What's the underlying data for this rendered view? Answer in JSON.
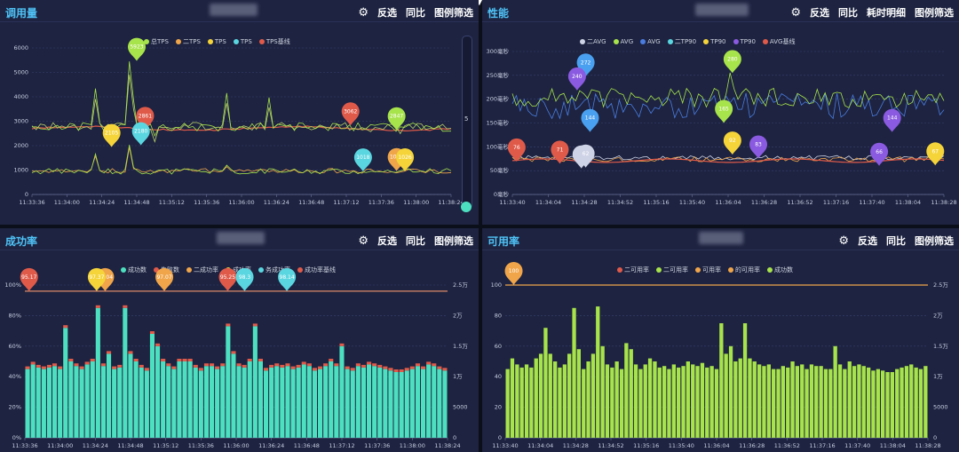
{
  "panels": [
    {
      "title": "调用量",
      "tools": [
        "反选",
        "同比",
        "图例筛选"
      ],
      "gear_icon": "gear-icon"
    },
    {
      "title": "性能",
      "tools": [
        "反选",
        "同比",
        "耗时明细",
        "图例筛选"
      ],
      "gear_icon": "gear-icon"
    },
    {
      "title": "成功率",
      "tools": [
        "反选",
        "同比",
        "图例筛选"
      ],
      "gear_icon": "gear-icon"
    },
    {
      "title": "可用率",
      "tools": [
        "反选",
        "同比",
        "图例筛选"
      ],
      "gear_icon": "gear-icon"
    }
  ],
  "top_center_marker": "▼",
  "slider_value": "5",
  "chart_data": [
    {
      "type": "line",
      "panel": "调用量",
      "legend": [
        {
          "name": "总TPS",
          "color": "#a7e34b"
        },
        {
          "name": "二TPS",
          "color": "#f0a54a"
        },
        {
          "name": "TPS",
          "color": "#f5d43a"
        },
        {
          "name": "TPS",
          "color": "#5ad6e0"
        },
        {
          "name": "TPS基线",
          "color": "#e05a4a"
        }
      ],
      "x_ticks": [
        "11:33:36",
        "11:34:00",
        "11:34:24",
        "11:34:48",
        "11:35:12",
        "11:35:36",
        "11:36:00",
        "11:36:24",
        "11:36:48",
        "11:37:12",
        "11:37:36",
        "11:38:00",
        "11:38:24"
      ],
      "y_ticks": [
        "0",
        "1000",
        "2000",
        "3000",
        "4000",
        "5000",
        "6000"
      ],
      "ylim": [
        0,
        6500
      ],
      "pins": [
        {
          "label": "5923",
          "x": 0.25,
          "y": 5923,
          "color": "#a7e34b"
        },
        {
          "label": "2861",
          "x": 0.27,
          "y": 2861,
          "color": "#e05a4a"
        },
        {
          "label": "3062",
          "x": 0.76,
          "y": 3062,
          "color": "#e05a4a"
        },
        {
          "label": "2847",
          "x": 0.87,
          "y": 2847,
          "color": "#a7e34b"
        },
        {
          "label": "2105",
          "x": 0.19,
          "y": 2105,
          "color": "#f5d43a"
        },
        {
          "label": "2180",
          "x": 0.26,
          "y": 2180,
          "color": "#5ad6e0"
        },
        {
          "label": "1018",
          "x": 0.79,
          "y": 1018,
          "color": "#5ad6e0"
        },
        {
          "label": "1036",
          "x": 0.87,
          "y": 1036,
          "color": "#f0a54a"
        },
        {
          "label": "1026",
          "x": 0.89,
          "y": 1026,
          "color": "#f5d43a"
        }
      ]
    },
    {
      "type": "line",
      "panel": "性能",
      "legend": [
        {
          "name": "二AVG",
          "color": "#cfd3e6"
        },
        {
          "name": "AVG",
          "color": "#a7e34b"
        },
        {
          "name": "AVG",
          "color": "#4a7ce0"
        },
        {
          "name": "二TP90",
          "color": "#5ad6e0"
        },
        {
          "name": "TP90",
          "color": "#f5d43a"
        },
        {
          "name": "TP90",
          "color": "#8a5ae0"
        },
        {
          "name": "AVG基线",
          "color": "#e05a4a"
        }
      ],
      "x_ticks": [
        "11:33:40",
        "11:34:04",
        "11:34:28",
        "11:34:52",
        "11:35:16",
        "11:35:40",
        "11:36:04",
        "11:36:28",
        "11:36:52",
        "11:37:16",
        "11:37:40",
        "11:38:04",
        "11:38:28"
      ],
      "y_ticks": [
        "0毫秒",
        "50毫秒",
        "100毫秒",
        "150毫秒",
        "200毫秒",
        "250毫秒",
        "300毫秒"
      ],
      "ylim": [
        0,
        330
      ],
      "pins": [
        {
          "label": "272",
          "x": 0.17,
          "y": 272,
          "color": "#4aa0f0"
        },
        {
          "label": "240",
          "x": 0.15,
          "y": 240,
          "color": "#8a5ae0"
        },
        {
          "label": "280",
          "x": 0.51,
          "y": 280,
          "color": "#a7e34b"
        },
        {
          "label": "144",
          "x": 0.18,
          "y": 144,
          "color": "#4aa0f0"
        },
        {
          "label": "144",
          "x": 0.88,
          "y": 144,
          "color": "#8a5ae0"
        },
        {
          "label": "165",
          "x": 0.49,
          "y": 165,
          "color": "#a7e34b"
        },
        {
          "label": "76",
          "x": 0.01,
          "y": 76,
          "color": "#e05a4a"
        },
        {
          "label": "71",
          "x": 0.11,
          "y": 71,
          "color": "#e05a4a"
        },
        {
          "label": "60",
          "x": 0.16,
          "y": 60,
          "color": "#cfd3e6"
        },
        {
          "label": "62",
          "x": 0.17,
          "y": 62,
          "color": "#cfd3e6"
        },
        {
          "label": "92",
          "x": 0.51,
          "y": 92,
          "color": "#f5d43a"
        },
        {
          "label": "83",
          "x": 0.57,
          "y": 83,
          "color": "#8a5ae0"
        },
        {
          "label": "66",
          "x": 0.85,
          "y": 66,
          "color": "#8a5ae0"
        },
        {
          "label": "67",
          "x": 0.98,
          "y": 67,
          "color": "#f5d43a"
        }
      ]
    },
    {
      "type": "bar",
      "panel": "成功率",
      "legend": [
        {
          "name": "成功数",
          "color": "#4de0c0"
        },
        {
          "name": "失败数",
          "color": "#e05a4a"
        },
        {
          "name": "二成功率",
          "color": "#f0a54a"
        },
        {
          "name": "成功率",
          "color": "#f5d43a"
        },
        {
          "name": "务成功率",
          "color": "#5ad6e0"
        },
        {
          "name": "成功率基线",
          "color": "#e05a4a"
        }
      ],
      "x_ticks": [
        "11:33:36",
        "11:34:00",
        "11:34:24",
        "11:34:48",
        "11:35:12",
        "11:35:36",
        "11:36:00",
        "11:36:24",
        "11:36:48",
        "11:37:12",
        "11:37:36",
        "11:38:00",
        "11:38:24"
      ],
      "y_ticks_left": [
        "0%",
        "20%",
        "40%",
        "60%",
        "80%",
        "100%"
      ],
      "y_ticks_right": [
        "0",
        "5000",
        "1万",
        "1.5万",
        "2万",
        "2.5万"
      ],
      "bars": [
        0.45,
        0.48,
        0.46,
        0.45,
        0.46,
        0.47,
        0.45,
        0.72,
        0.5,
        0.47,
        0.45,
        0.48,
        0.5,
        0.85,
        0.47,
        0.55,
        0.45,
        0.46,
        0.85,
        0.55,
        0.5,
        0.46,
        0.44,
        0.68,
        0.6,
        0.5,
        0.47,
        0.45,
        0.5,
        0.5,
        0.5,
        0.46,
        0.44,
        0.47,
        0.47,
        0.45,
        0.47,
        0.73,
        0.55,
        0.47,
        0.46,
        0.5,
        0.73,
        0.5,
        0.44,
        0.46,
        0.47,
        0.46,
        0.47,
        0.45,
        0.46,
        0.48,
        0.47,
        0.44,
        0.45,
        0.47,
        0.5,
        0.47,
        0.6,
        0.45,
        0.44,
        0.47,
        0.46,
        0.48,
        0.47,
        0.46,
        0.45,
        0.44,
        0.43,
        0.43,
        0.44,
        0.45,
        0.47,
        0.45,
        0.48,
        0.47,
        0.45,
        0.44
      ],
      "pins": [
        {
          "label": "95.17",
          "x": 0.01,
          "color": "#e05a4a"
        },
        {
          "label": "98.04",
          "x": 0.19,
          "color": "#f0a54a"
        },
        {
          "label": "97.37",
          "x": 0.17,
          "color": "#f5d43a"
        },
        {
          "label": "97.07",
          "x": 0.33,
          "color": "#f0a54a"
        },
        {
          "label": "95.25",
          "x": 0.48,
          "color": "#e05a4a"
        },
        {
          "label": "98.3",
          "x": 0.52,
          "color": "#5ad6e0"
        },
        {
          "label": "98.14",
          "x": 0.62,
          "color": "#5ad6e0"
        }
      ]
    },
    {
      "type": "bar",
      "panel": "可用率",
      "legend": [
        {
          "name": "二可用率",
          "color": "#e05a4a"
        },
        {
          "name": "二可用率",
          "color": "#a7e34b"
        },
        {
          "name": "可用率",
          "color": "#f0a54a"
        },
        {
          "name": "的可用率",
          "color": "#f0a54a"
        },
        {
          "name": "成功数",
          "color": "#a7e34b"
        }
      ],
      "x_ticks": [
        "11:33:40",
        "11:34:04",
        "11:34:28",
        "11:34:52",
        "11:35:16",
        "11:35:40",
        "11:36:04",
        "11:36:28",
        "11:36:52",
        "11:37:16",
        "11:37:40",
        "11:38:04",
        "11:38:28"
      ],
      "y_ticks_left": [
        "0",
        "20",
        "40",
        "60",
        "80",
        "100"
      ],
      "y_ticks_right": [
        "0",
        "5000",
        "1万",
        "1.5万",
        "2万",
        "2.5万"
      ],
      "bars": [
        0.45,
        0.52,
        0.48,
        0.46,
        0.48,
        0.46,
        0.52,
        0.55,
        0.72,
        0.55,
        0.5,
        0.46,
        0.48,
        0.55,
        0.85,
        0.58,
        0.45,
        0.5,
        0.55,
        0.86,
        0.6,
        0.48,
        0.46,
        0.5,
        0.45,
        0.62,
        0.58,
        0.48,
        0.45,
        0.48,
        0.52,
        0.5,
        0.46,
        0.47,
        0.45,
        0.48,
        0.46,
        0.47,
        0.5,
        0.48,
        0.47,
        0.49,
        0.46,
        0.47,
        0.45,
        0.75,
        0.55,
        0.6,
        0.5,
        0.52,
        0.75,
        0.52,
        0.5,
        0.48,
        0.47,
        0.48,
        0.45,
        0.45,
        0.47,
        0.46,
        0.5,
        0.47,
        0.48,
        0.45,
        0.48,
        0.47,
        0.47,
        0.45,
        0.45,
        0.6,
        0.48,
        0.45,
        0.5,
        0.47,
        0.48,
        0.47,
        0.46,
        0.44,
        0.45,
        0.44,
        0.43,
        0.43,
        0.45,
        0.46,
        0.47,
        0.48,
        0.46,
        0.45,
        0.47
      ],
      "pins": [
        {
          "label": "100",
          "x": 0.02,
          "color": "#f0a54a"
        }
      ]
    }
  ]
}
